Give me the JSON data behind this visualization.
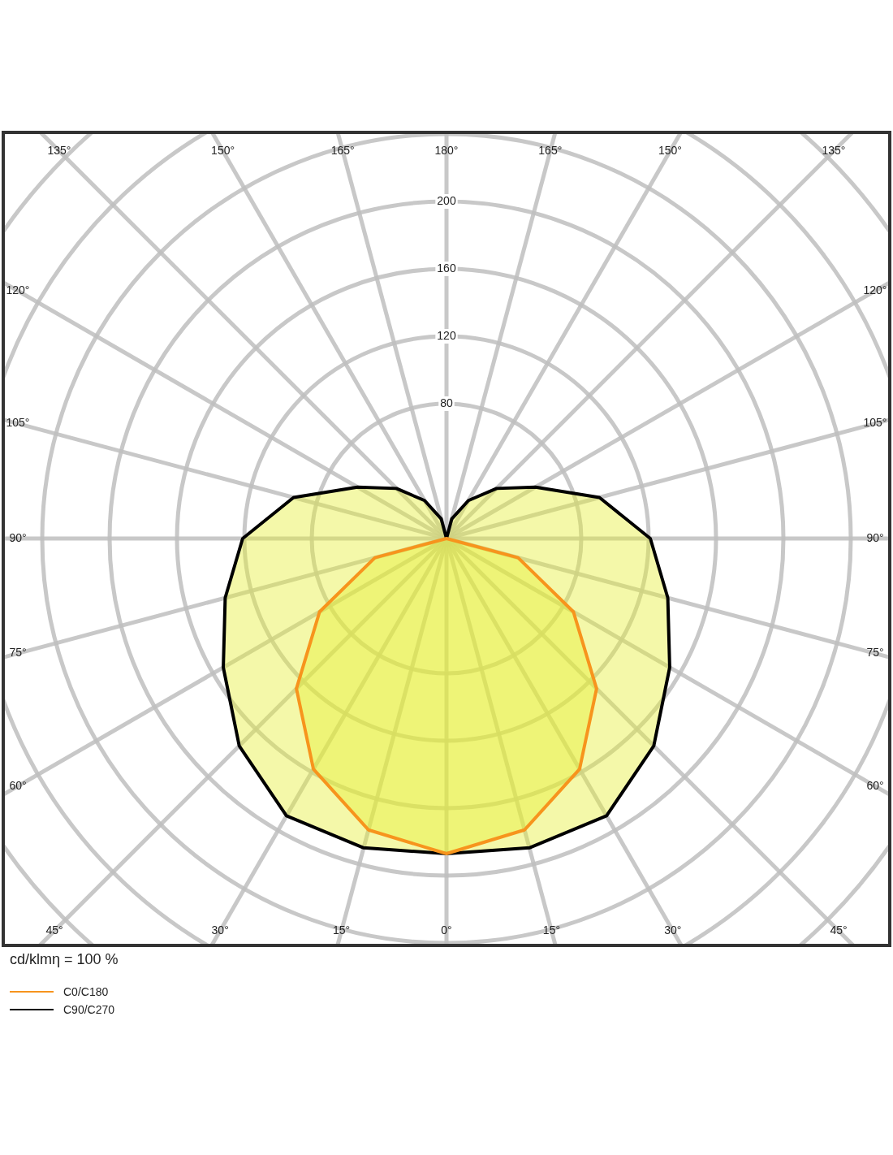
{
  "chart_data": {
    "type": "radar",
    "ylabel": "cd/klmη = 100 %",
    "categories": [
      "180°",
      "165°",
      "150°",
      "135°",
      "120°",
      "105°",
      "90°",
      "75°",
      "60°",
      "45°",
      "30°",
      "15°",
      "0°",
      "15°",
      "30°",
      "45°",
      "60°",
      "75°",
      "90°",
      "105°",
      "120°",
      "135°",
      "150°",
      "165°"
    ],
    "series": [
      {
        "name": "C0/C180",
        "color": "#f7941d",
        "values": [
          0,
          0,
          0,
          0,
          0,
          0,
          0,
          44,
          87,
          126,
          158,
          179,
          187,
          179,
          158,
          126,
          87,
          44,
          0,
          0,
          0,
          0,
          0,
          0
        ]
      },
      {
        "name": "C90/C270",
        "color": "#000000",
        "values": [
          0,
          12,
          26,
          42,
          61,
          94,
          121,
          136,
          153,
          174,
          190,
          190,
          187,
          190,
          190,
          174,
          153,
          136,
          121,
          94,
          61,
          42,
          26,
          12
        ]
      }
    ],
    "ylim": [
      0,
      360
    ],
    "yticks": [
      80,
      120,
      160,
      200
    ],
    "grid": true,
    "legend": "bottom left"
  }
}
